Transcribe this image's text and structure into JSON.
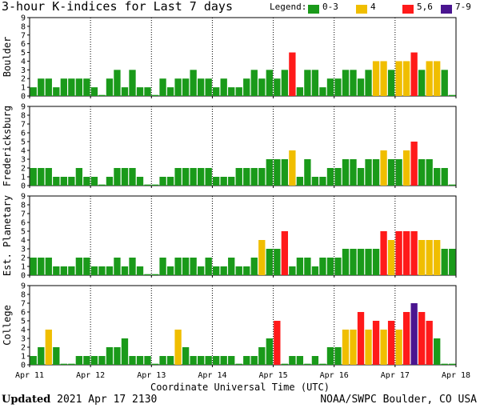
{
  "title": "3-hour K-indices for Last 7 days",
  "legend": {
    "label": "Legend:",
    "items": [
      {
        "label": "0-3",
        "color": "#1a9a1a"
      },
      {
        "label": "4",
        "color": "#f0be00"
      },
      {
        "label": "5,6",
        "color": "#ff1a1a"
      },
      {
        "label": "7-9",
        "color": "#4a1590"
      }
    ]
  },
  "footer": {
    "updated_label": "Updated",
    "updated_value": "2021 Apr 17 2130",
    "source": "NOAA/SWPC Boulder, CO USA"
  },
  "chart_data": {
    "type": "bar",
    "xlabel": "Coordinate Universal Time (UTC)",
    "x_tick_labels": [
      "Apr 11",
      "Apr 12",
      "Apr 13",
      "Apr 14",
      "Apr 15",
      "Apr 16",
      "Apr 17",
      "Apr 18"
    ],
    "y_ticks": [
      0,
      1,
      2,
      3,
      4,
      5,
      6,
      7,
      8,
      9
    ],
    "ylim": [
      0,
      9
    ],
    "bars_per_day": 8,
    "total_slots": 56,
    "panels": [
      {
        "name": "Boulder",
        "values": [
          1,
          2,
          2,
          1,
          2,
          2,
          2,
          2,
          1,
          0,
          2,
          3,
          1,
          3,
          1,
          1,
          0,
          2,
          1,
          2,
          2,
          3,
          2,
          2,
          1,
          2,
          1,
          1,
          2,
          3,
          2,
          3,
          2,
          3,
          5,
          1,
          3,
          3,
          1,
          2,
          2,
          3,
          3,
          2,
          3,
          4,
          4,
          3,
          4,
          4,
          5,
          3,
          4,
          4,
          3,
          0
        ]
      },
      {
        "name": "Fredericksburg",
        "values": [
          2,
          2,
          2,
          1,
          1,
          1,
          2,
          1,
          1,
          0,
          1,
          2,
          2,
          2,
          1,
          0,
          0,
          1,
          1,
          2,
          2,
          2,
          2,
          2,
          1,
          1,
          1,
          2,
          2,
          2,
          2,
          3,
          3,
          3,
          4,
          1,
          3,
          1,
          1,
          2,
          2,
          3,
          3,
          2,
          3,
          3,
          4,
          3,
          3,
          4,
          5,
          3,
          3,
          2,
          2,
          0
        ]
      },
      {
        "name": "Est. Planetary",
        "values": [
          2,
          2,
          2,
          1,
          1,
          1,
          2,
          2,
          1,
          1,
          1,
          2,
          1,
          2,
          1,
          0,
          0,
          2,
          1,
          2,
          2,
          2,
          1,
          2,
          1,
          1,
          2,
          1,
          1,
          2,
          4,
          3,
          3,
          5,
          1,
          2,
          2,
          1,
          2,
          2,
          2,
          3,
          3,
          3,
          3,
          3,
          5,
          4,
          5,
          5,
          5,
          4,
          4,
          4,
          3,
          3
        ]
      },
      {
        "name": "College",
        "values": [
          1,
          2,
          4,
          2,
          0,
          0,
          1,
          1,
          1,
          1,
          2,
          2,
          3,
          1,
          1,
          1,
          0,
          1,
          1,
          4,
          2,
          1,
          1,
          1,
          1,
          1,
          1,
          0,
          1,
          1,
          2,
          3,
          5,
          0,
          1,
          1,
          0,
          1,
          0,
          2,
          2,
          4,
          4,
          6,
          4,
          5,
          4,
          5,
          4,
          6,
          7,
          6,
          5,
          3,
          0,
          0
        ]
      }
    ]
  }
}
